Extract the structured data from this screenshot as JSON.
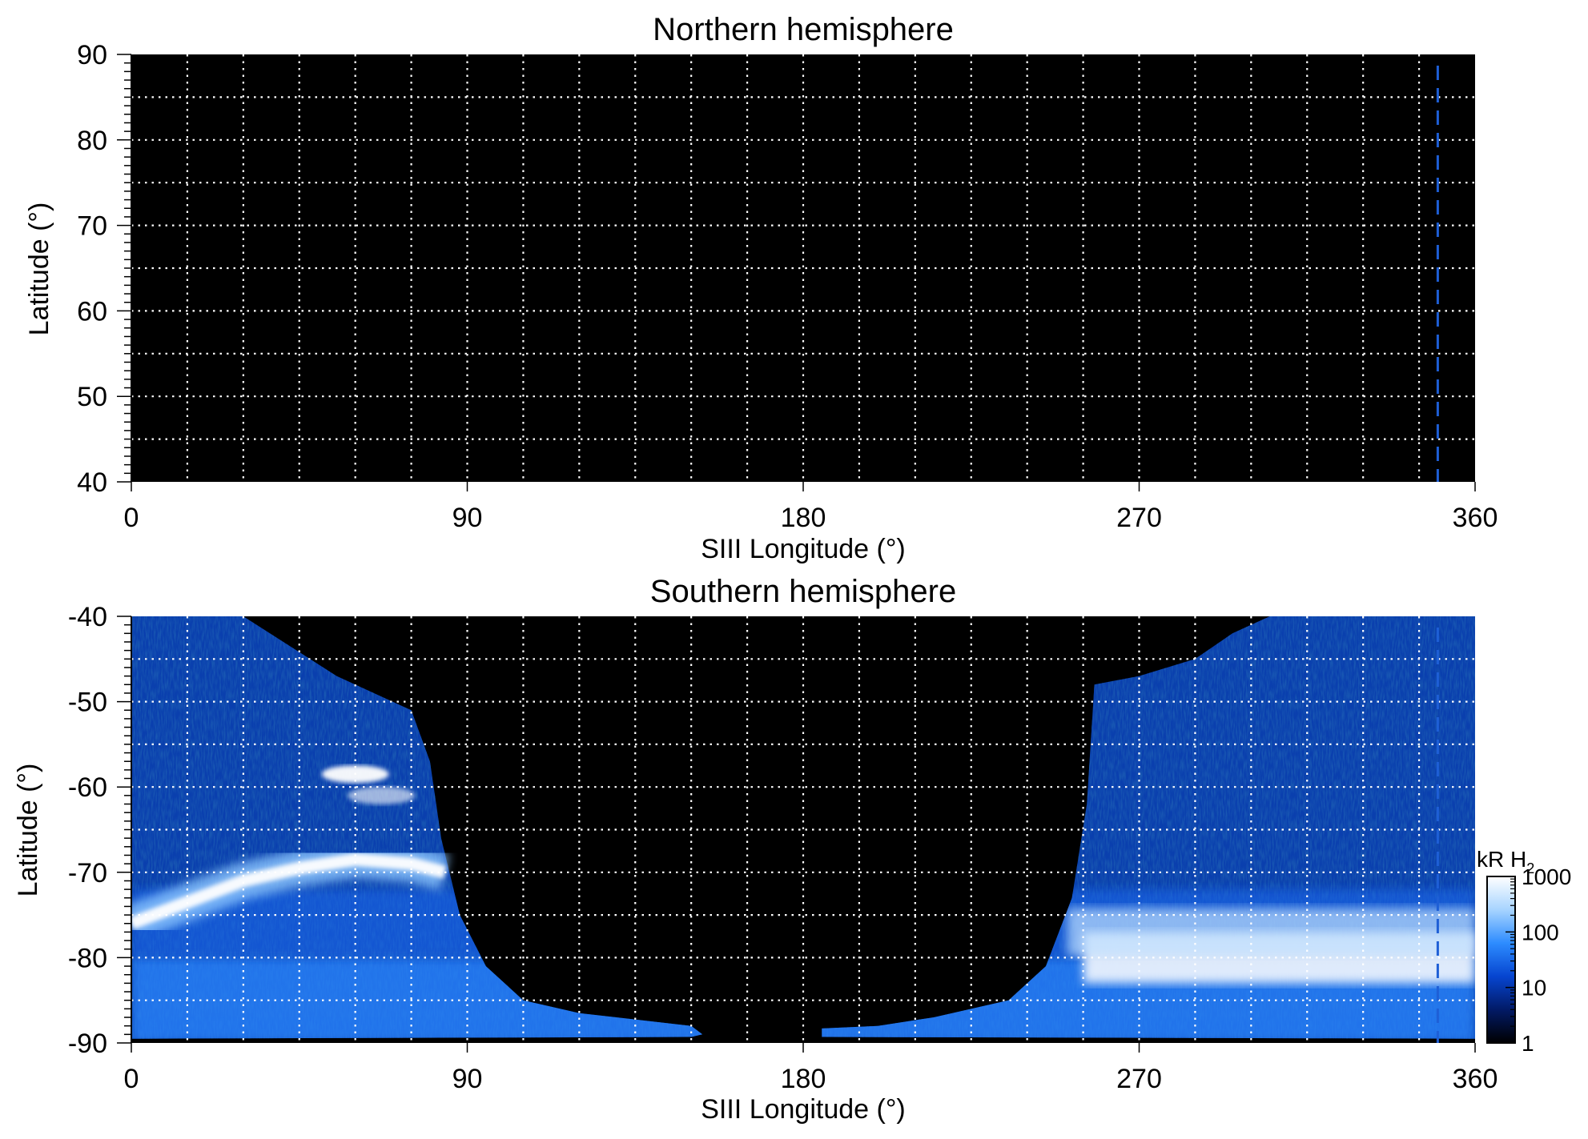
{
  "chart_data": [
    {
      "type": "heatmap",
      "title": "Northern hemisphere",
      "xlabel": "SIII Longitude (°)",
      "ylabel": "Latitude (°)",
      "xlim": [
        0,
        360
      ],
      "ylim": [
        40,
        90
      ],
      "xticks": [
        "0",
        "90",
        "180",
        "270",
        "360"
      ],
      "yticks": [
        "40",
        "50",
        "60",
        "70",
        "80",
        "90"
      ],
      "grid": true,
      "grid_x_step": 15,
      "grid_y_step": 5,
      "background": "#000000",
      "marker_line": {
        "longitude": 350,
        "color": "#1e5fd6",
        "style": "dashed"
      },
      "emission": []
    },
    {
      "type": "heatmap",
      "title": "Southern hemisphere",
      "xlabel": "SIII Longitude (°)",
      "ylabel": "Latitude (°)",
      "xlim": [
        0,
        360
      ],
      "ylim": [
        -90,
        -40
      ],
      "xticks": [
        "0",
        "90",
        "180",
        "270",
        "360"
      ],
      "yticks": [
        "-40",
        "-50",
        "-60",
        "-70",
        "-80",
        "-90"
      ],
      "grid": true,
      "grid_x_step": 15,
      "grid_y_step": 5,
      "background": "#000000",
      "marker_line": {
        "longitude": 350,
        "color": "#1e5fd6",
        "style": "dashed"
      },
      "coverage_regions": [
        {
          "name": "western",
          "boundary": [
            [
              0,
              -40
            ],
            [
              30,
              -40
            ],
            [
              55,
              -47
            ],
            [
              75,
              -51
            ],
            [
              80,
              -57
            ],
            [
              83,
              -66
            ],
            [
              88,
              -75
            ],
            [
              95,
              -81
            ],
            [
              105,
              -85
            ],
            [
              120,
              -86.5
            ],
            [
              150,
              -88
            ],
            [
              153,
              -89
            ],
            [
              150,
              -89.3
            ],
            [
              0,
              -89.5
            ]
          ]
        },
        {
          "name": "eastern",
          "boundary": [
            [
              360,
              -40
            ],
            [
              305,
              -40
            ],
            [
              295,
              -42
            ],
            [
              285,
              -45
            ],
            [
              270,
              -47
            ],
            [
              258,
              -48
            ],
            [
              256,
              -62
            ],
            [
              252,
              -73
            ],
            [
              245,
              -81
            ],
            [
              235,
              -85
            ],
            [
              215,
              -87
            ],
            [
              200,
              -88
            ],
            [
              185,
              -88.3
            ],
            [
              185,
              -89.3
            ],
            [
              360,
              -89.5
            ]
          ]
        }
      ],
      "main_oval": [
        {
          "lon": 0,
          "lat": -76,
          "intensity": 700
        },
        {
          "lon": 15,
          "lat": -73.5,
          "intensity": 900
        },
        {
          "lon": 30,
          "lat": -71,
          "intensity": 1000
        },
        {
          "lon": 45,
          "lat": -69.5,
          "intensity": 1000
        },
        {
          "lon": 60,
          "lat": -68.5,
          "intensity": 1000
        },
        {
          "lon": 75,
          "lat": -69,
          "intensity": 1000
        },
        {
          "lon": 84,
          "lat": -70,
          "intensity": 800
        }
      ],
      "spot_features": [
        {
          "lon": 60,
          "lat": -58.5,
          "intensity": 1000
        },
        {
          "lon": 67,
          "lat": -61,
          "intensity": 400
        }
      ],
      "bright_region": {
        "lon_range": [
          255,
          360
        ],
        "lat_range": [
          -77,
          -83
        ],
        "intensity": 1000
      }
    }
  ],
  "colorbar": {
    "label_main": "kR H",
    "label_sub": "2",
    "scale": "log",
    "range": [
      1,
      1000
    ],
    "ticks": [
      "1",
      "10",
      "100",
      "1000"
    ],
    "colors": [
      "#000000",
      "#021a66",
      "#0645d0",
      "#2d8cff",
      "#a7d4ff",
      "#ffffff"
    ]
  }
}
